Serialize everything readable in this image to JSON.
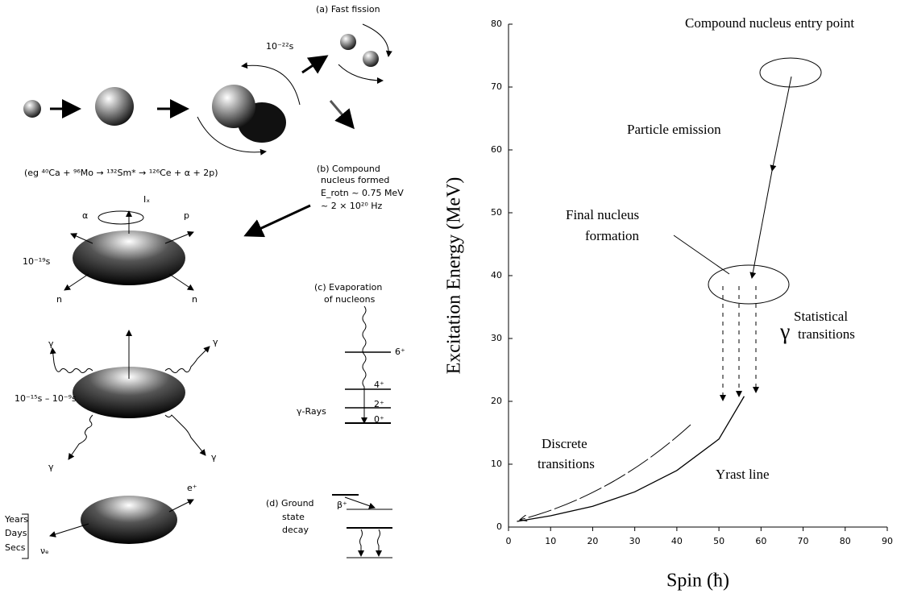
{
  "chart_data": {
    "type": "line",
    "xlabel": "Spin (ħ)",
    "ylabel": "Excitation Energy (MeV)",
    "xlim": [
      0,
      90
    ],
    "xticks": [
      0,
      10,
      20,
      30,
      40,
      50,
      60,
      70,
      80,
      90
    ],
    "ylim": [
      0,
      80
    ],
    "yticks": [
      0,
      10,
      20,
      30,
      40,
      50,
      60,
      70,
      80
    ],
    "series": [
      {
        "name": "Yrast line",
        "color": "#000000",
        "x": [
          2,
          10,
          20,
          30,
          40,
          50,
          56
        ],
        "values": [
          0.9,
          1.8,
          3.3,
          5.6,
          9.0,
          14.0,
          20.8
        ]
      }
    ],
    "annotations": [
      "Compound nucleus entry point",
      "Particle emission",
      "Final nucleus",
      "formation",
      "Statistical",
      "γ",
      "transitions",
      "Discrete",
      "transitions"
    ]
  },
  "diagram": {
    "labels": [
      "(a) Fast fission",
      "10⁻²²s",
      "(eg ⁴⁰Ca + ⁹⁶Mo  →  ¹³²Sm*  →  ¹²⁶Ce + α + 2p)",
      "(b) Compound",
      "nucleus formed",
      "E_rotn ~ 0.75 MeV",
      "~ 2 × 10²⁰ Hz",
      "Iₓ",
      "α",
      "p",
      "n",
      "n",
      "10⁻¹⁹s",
      "(c) Evaporation",
      "of nucleons",
      "6⁺",
      "4⁺",
      "2⁺",
      "0⁺",
      "γ-Rays",
      "γ",
      "γ",
      "γ",
      "γ",
      "10⁻¹⁵s – 10⁻⁹s",
      "e⁺",
      "νₑ",
      "Years",
      "Days",
      "Secs",
      "β⁺",
      "(d) Ground",
      "state",
      "decay"
    ]
  }
}
